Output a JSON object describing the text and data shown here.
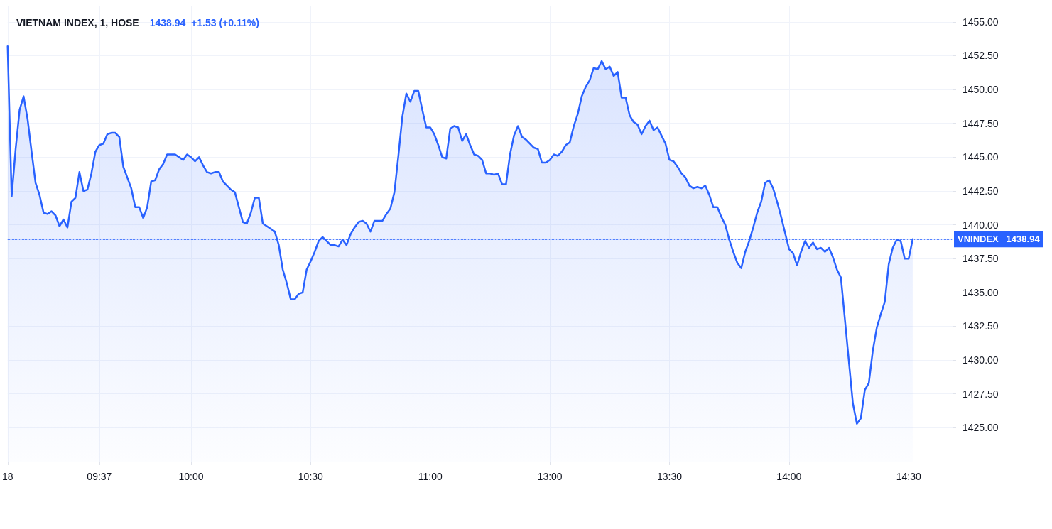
{
  "chart_data": {
    "type": "area",
    "title": "VIETNAM INDEX, 1, HOSE",
    "subtitle": "1438.94  +1.53 (+0.11%)",
    "categories": [
      "18",
      null,
      null,
      null,
      null,
      null,
      null,
      null,
      null,
      null,
      null,
      null,
      null,
      null,
      null,
      null,
      null,
      null,
      null,
      null,
      null,
      null,
      null,
      "09:37",
      null,
      null,
      null,
      null,
      null,
      null,
      null,
      null,
      null,
      null,
      null,
      null,
      null,
      null,
      null,
      null,
      null,
      null,
      null,
      null,
      null,
      null,
      "10:00",
      null,
      null,
      null,
      null,
      null,
      null,
      null,
      null,
      null,
      null,
      null,
      null,
      null,
      null,
      null,
      null,
      null,
      null,
      null,
      null,
      null,
      null,
      null,
      null,
      null,
      null,
      null,
      null,
      null,
      "10:30",
      null,
      null,
      null,
      null,
      null,
      null,
      null,
      null,
      null,
      null,
      null,
      null,
      null,
      null,
      null,
      null,
      null,
      null,
      null,
      null,
      null,
      null,
      null,
      null,
      null,
      null,
      null,
      null,
      null,
      "11:00",
      null,
      null,
      null,
      null,
      null,
      null,
      null,
      null,
      null,
      null,
      null,
      null,
      null,
      null,
      null,
      null,
      null,
      null,
      null,
      null,
      null,
      null,
      null,
      null,
      null,
      null,
      null,
      null,
      null,
      "13:00",
      null,
      null,
      null,
      null,
      null,
      null,
      null,
      null,
      null,
      null,
      null,
      null,
      null,
      null,
      null,
      null,
      null,
      null,
      null,
      null,
      null,
      null,
      null,
      null,
      null,
      null,
      null,
      null,
      null,
      "13:30",
      null,
      null,
      null,
      null,
      null,
      null,
      null,
      null,
      null,
      null,
      null,
      null,
      null,
      null,
      null,
      null,
      null,
      null,
      null,
      null,
      null,
      null,
      null,
      null,
      null,
      null,
      null,
      null,
      null,
      "14:00",
      null,
      null,
      null,
      null,
      null,
      null,
      null,
      null,
      null,
      null,
      null,
      null,
      null,
      null,
      null,
      null,
      null,
      null,
      null,
      null,
      null,
      null,
      null,
      null,
      null,
      null,
      null,
      null,
      null,
      "14:30",
      null,
      null,
      null,
      null,
      null,
      null,
      null,
      null,
      null,
      null,
      null
    ],
    "values": [
      1453.2,
      1442.1,
      1445.6,
      1448.5,
      1449.5,
      1447.8,
      1445.4,
      1443.1,
      1442.2,
      1440.9,
      1440.8,
      1441.0,
      1440.7,
      1439.9,
      1440.4,
      1439.8,
      1441.7,
      1442.0,
      1443.9,
      1442.5,
      1442.6,
      1443.8,
      1445.4,
      1445.9,
      1446.0,
      1446.7,
      1446.8,
      1446.8,
      1446.5,
      1444.3,
      1443.5,
      1442.7,
      1441.3,
      1441.3,
      1440.5,
      1441.3,
      1443.2,
      1443.3,
      1444.1,
      1444.5,
      1445.2,
      1445.2,
      1445.2,
      1445.0,
      1444.8,
      1445.2,
      1445.0,
      1444.7,
      1445.0,
      1444.4,
      1443.9,
      1443.8,
      1443.9,
      1443.9,
      1443.2,
      1442.9,
      1442.6,
      1442.4,
      1441.3,
      1440.2,
      1440.1,
      1440.9,
      1442.0,
      1442.0,
      1440.1,
      1439.9,
      1439.7,
      1439.5,
      1438.5,
      1436.7,
      1435.7,
      1434.5,
      1434.5,
      1434.9,
      1435.0,
      1436.7,
      1437.3,
      1438.0,
      1438.8,
      1439.1,
      1438.8,
      1438.5,
      1438.5,
      1438.4,
      1438.9,
      1438.5,
      1439.3,
      1439.8,
      1440.2,
      1440.3,
      1440.1,
      1439.5,
      1440.3,
      1440.3,
      1440.3,
      1440.8,
      1441.2,
      1442.4,
      1445.1,
      1448.0,
      1449.7,
      1449.1,
      1449.9,
      1449.9,
      1448.5,
      1447.2,
      1447.2,
      1446.7,
      1445.9,
      1445.0,
      1444.9,
      1447.1,
      1447.3,
      1447.2,
      1446.2,
      1446.7,
      1445.9,
      1445.2,
      1445.1,
      1444.8,
      1443.8,
      1443.8,
      1443.7,
      1443.8,
      1443.0,
      1443.0,
      1445.2,
      1446.6,
      1447.3,
      1446.5,
      1446.3,
      1446.0,
      1445.7,
      1445.6,
      1444.6,
      1444.6,
      1444.8,
      1445.2,
      1445.1,
      1445.4,
      1445.9,
      1446.1,
      1447.3,
      1448.2,
      1449.5,
      1450.2,
      1450.7,
      1451.6,
      1451.5,
      1452.1,
      1451.5,
      1451.7,
      1451.0,
      1451.3,
      1449.4,
      1449.4,
      1448.1,
      1447.6,
      1447.4,
      1446.7,
      1447.3,
      1447.7,
      1447.0,
      1447.2,
      1446.6,
      1446.0,
      1444.8,
      1444.7,
      1444.3,
      1443.8,
      1443.5,
      1442.9,
      1442.7,
      1442.8,
      1442.7,
      1442.9,
      1442.2,
      1441.3,
      1441.3,
      1440.6,
      1440.0,
      1438.9,
      1438.0,
      1437.2,
      1436.8,
      1438.0,
      1438.8,
      1439.8,
      1440.9,
      1441.7,
      1443.1,
      1443.3,
      1442.7,
      1441.7,
      1440.6,
      1439.4,
      1438.2,
      1437.9,
      1437.0,
      1438.0,
      1438.8,
      1438.3,
      1438.7,
      1438.2,
      1438.3,
      1438.0,
      1438.3,
      1437.6,
      1436.7,
      1436.1,
      1433.0,
      1429.9,
      1426.8,
      1425.3,
      1425.7,
      1427.8,
      1428.3,
      1430.7,
      1432.4,
      1433.4,
      1434.3,
      1437.1,
      1438.3,
      1438.9,
      1438.8,
      1437.5,
      1437.5,
      1438.94,
      null,
      null,
      null,
      null,
      null,
      null,
      null,
      null,
      null,
      null
    ],
    "color": "#2962ff",
    "marker": "none",
    "line_style": "solid",
    "grid": true,
    "ylim": [
      1422.5,
      1456.2
    ],
    "yticks": [
      {
        "value": 1425,
        "label": "1425.00"
      },
      {
        "value": 1427.5,
        "label": "1427.50"
      },
      {
        "value": 1430,
        "label": "1430.00"
      },
      {
        "value": 1432.5,
        "label": "1432.50"
      },
      {
        "value": 1435,
        "label": "1435.00"
      },
      {
        "value": 1437.5,
        "label": "1437.50"
      },
      {
        "value": 1440,
        "label": "1440.00"
      },
      {
        "value": 1442.5,
        "label": "1442.50"
      },
      {
        "value": 1445,
        "label": "1445.00"
      },
      {
        "value": 1447.5,
        "label": "1447.50"
      },
      {
        "value": 1450,
        "label": "1450.00"
      },
      {
        "value": 1452.5,
        "label": "1452.50"
      },
      {
        "value": 1455,
        "label": "1455.00"
      }
    ],
    "ref_lines": [
      {
        "axis": "y",
        "value": 1438.94,
        "label": "VNINDEX   1438.94",
        "color": "#2962ff",
        "line_style": "dotted"
      }
    ]
  }
}
